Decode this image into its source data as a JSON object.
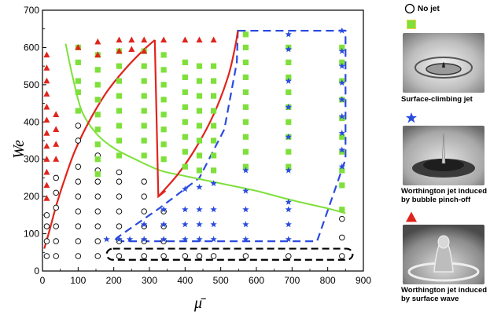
{
  "chart_data": {
    "type": "scatter",
    "xlabel": "μ̄",
    "ylabel": "We",
    "xlim": [
      0,
      900
    ],
    "ylim": [
      0,
      700
    ],
    "x_ticks": [
      0,
      100,
      200,
      300,
      400,
      500,
      600,
      700,
      800,
      900
    ],
    "y_ticks": [
      0,
      100,
      200,
      300,
      400,
      500,
      600,
      700
    ],
    "grid": false,
    "legend_position": "right",
    "colors": {
      "no_jet": "#000000",
      "surface_climbing": "#7ee03a",
      "bubble_pinch": "#2a4be0",
      "surface_wave": "#e0241c",
      "green_curve": "#7ee03a",
      "red_curve": "#e0241c",
      "blue_region": "#2a4be0",
      "black_region": "#000000"
    },
    "series": [
      {
        "name": "No jet",
        "marker": "open-circle",
        "points": [
          [
            12,
            40
          ],
          [
            12,
            80
          ],
          [
            12,
            120
          ],
          [
            12,
            150
          ],
          [
            38,
            40
          ],
          [
            38,
            80
          ],
          [
            38,
            120
          ],
          [
            38,
            170
          ],
          [
            38,
            210
          ],
          [
            38,
            250
          ],
          [
            100,
            40
          ],
          [
            100,
            80
          ],
          [
            100,
            120
          ],
          [
            100,
            160
          ],
          [
            100,
            200
          ],
          [
            100,
            240
          ],
          [
            100,
            280
          ],
          [
            100,
            350
          ],
          [
            100,
            390
          ],
          [
            155,
            40
          ],
          [
            155,
            80
          ],
          [
            155,
            120
          ],
          [
            155,
            160
          ],
          [
            155,
            200
          ],
          [
            155,
            240
          ],
          [
            155,
            270
          ],
          [
            155,
            310
          ],
          [
            215,
            40
          ],
          [
            215,
            80
          ],
          [
            215,
            120
          ],
          [
            215,
            160
          ],
          [
            215,
            200
          ],
          [
            215,
            240
          ],
          [
            215,
            265
          ],
          [
            285,
            40
          ],
          [
            285,
            80
          ],
          [
            285,
            120
          ],
          [
            285,
            160
          ],
          [
            285,
            200
          ],
          [
            285,
            240
          ],
          [
            340,
            40
          ],
          [
            340,
            80
          ],
          [
            340,
            120
          ],
          [
            340,
            160
          ],
          [
            400,
            40
          ],
          [
            440,
            40
          ],
          [
            480,
            40
          ],
          [
            570,
            40
          ],
          [
            690,
            40
          ],
          [
            840,
            40
          ],
          [
            840,
            90
          ],
          [
            840,
            140
          ]
        ]
      },
      {
        "name": "Surface-climbing jet",
        "marker": "square",
        "points": [
          [
            100,
            430
          ],
          [
            100,
            480
          ],
          [
            100,
            510
          ],
          [
            100,
            560
          ],
          [
            100,
            600
          ],
          [
            155,
            260
          ],
          [
            155,
            300
          ],
          [
            155,
            340
          ],
          [
            155,
            380
          ],
          [
            155,
            420
          ],
          [
            155,
            460
          ],
          [
            155,
            500
          ],
          [
            155,
            540
          ],
          [
            155,
            580
          ],
          [
            215,
            310
          ],
          [
            215,
            350
          ],
          [
            215,
            390
          ],
          [
            215,
            430
          ],
          [
            215,
            470
          ],
          [
            215,
            510
          ],
          [
            215,
            550
          ],
          [
            215,
            590
          ],
          [
            285,
            310
          ],
          [
            285,
            350
          ],
          [
            285,
            390
          ],
          [
            285,
            430
          ],
          [
            285,
            470
          ],
          [
            285,
            510
          ],
          [
            285,
            550
          ],
          [
            285,
            590
          ],
          [
            340,
            300
          ],
          [
            340,
            340
          ],
          [
            340,
            380
          ],
          [
            340,
            420
          ],
          [
            340,
            460
          ],
          [
            340,
            500
          ],
          [
            340,
            540
          ],
          [
            340,
            580
          ],
          [
            400,
            280
          ],
          [
            400,
            320
          ],
          [
            400,
            360
          ],
          [
            400,
            400
          ],
          [
            400,
            440
          ],
          [
            400,
            480
          ],
          [
            400,
            520
          ],
          [
            400,
            560
          ],
          [
            440,
            270
          ],
          [
            440,
            310
          ],
          [
            440,
            350
          ],
          [
            440,
            390
          ],
          [
            440,
            430
          ],
          [
            440,
            470
          ],
          [
            440,
            510
          ],
          [
            440,
            550
          ],
          [
            480,
            270
          ],
          [
            480,
            310
          ],
          [
            480,
            350
          ],
          [
            480,
            390
          ],
          [
            480,
            430
          ],
          [
            480,
            470
          ],
          [
            480,
            510
          ],
          [
            480,
            550
          ],
          [
            570,
            280
          ],
          [
            570,
            320
          ],
          [
            570,
            360
          ],
          [
            570,
            400
          ],
          [
            570,
            440
          ],
          [
            570,
            480
          ],
          [
            570,
            520
          ],
          [
            570,
            560
          ],
          [
            570,
            600
          ],
          [
            570,
            635
          ],
          [
            690,
            280
          ],
          [
            690,
            320
          ],
          [
            690,
            360
          ],
          [
            690,
            400
          ],
          [
            690,
            440
          ],
          [
            690,
            480
          ],
          [
            690,
            520
          ],
          [
            690,
            560
          ],
          [
            690,
            600
          ],
          [
            840,
            165
          ],
          [
            840,
            230
          ],
          [
            840,
            270
          ],
          [
            840,
            320
          ],
          [
            840,
            360
          ],
          [
            840,
            410
          ],
          [
            840,
            460
          ],
          [
            840,
            510
          ],
          [
            840,
            560
          ],
          [
            840,
            600
          ]
        ]
      },
      {
        "name": "Worthington jet induced by bubble pinch-off",
        "marker": "star",
        "points": [
          [
            180,
            85
          ],
          [
            215,
            85
          ],
          [
            245,
            85
          ],
          [
            285,
            85
          ],
          [
            340,
            85
          ],
          [
            400,
            85
          ],
          [
            440,
            85
          ],
          [
            480,
            85
          ],
          [
            570,
            85
          ],
          [
            690,
            85
          ],
          [
            285,
            125
          ],
          [
            340,
            125
          ],
          [
            400,
            125
          ],
          [
            440,
            125
          ],
          [
            480,
            125
          ],
          [
            570,
            125
          ],
          [
            690,
            125
          ],
          [
            340,
            165
          ],
          [
            400,
            165
          ],
          [
            440,
            165
          ],
          [
            480,
            165
          ],
          [
            570,
            165
          ],
          [
            690,
            165
          ],
          [
            400,
            220
          ],
          [
            440,
            225
          ],
          [
            480,
            235
          ],
          [
            570,
            215
          ],
          [
            690,
            185
          ],
          [
            570,
            270
          ],
          [
            690,
            270
          ],
          [
            690,
            360
          ],
          [
            690,
            440
          ],
          [
            690,
            510
          ],
          [
            690,
            595
          ],
          [
            690,
            635
          ],
          [
            840,
            280
          ],
          [
            840,
            325
          ],
          [
            840,
            370
          ],
          [
            840,
            415
          ],
          [
            840,
            460
          ],
          [
            840,
            505
          ],
          [
            840,
            550
          ],
          [
            840,
            590
          ],
          [
            840,
            645
          ]
        ]
      },
      {
        "name": "Worthington jet induced by surface wave",
        "marker": "triangle",
        "points": [
          [
            12,
            195
          ],
          [
            12,
            230
          ],
          [
            12,
            265
          ],
          [
            12,
            300
          ],
          [
            12,
            335
          ],
          [
            12,
            370
          ],
          [
            12,
            405
          ],
          [
            12,
            440
          ],
          [
            12,
            475
          ],
          [
            12,
            510
          ],
          [
            12,
            545
          ],
          [
            12,
            580
          ],
          [
            38,
            300
          ],
          [
            38,
            340
          ],
          [
            38,
            380
          ],
          [
            38,
            420
          ],
          [
            100,
            600
          ],
          [
            155,
            615
          ],
          [
            215,
            620
          ],
          [
            250,
            620
          ],
          [
            285,
            620
          ],
          [
            155,
            580
          ],
          [
            215,
            590
          ],
          [
            250,
            595
          ],
          [
            285,
            590
          ],
          [
            340,
            620
          ],
          [
            400,
            620
          ],
          [
            440,
            620
          ],
          [
            480,
            620
          ]
        ]
      }
    ],
    "boundaries": [
      {
        "name": "green-curve",
        "points": [
          [
            65,
            610
          ],
          [
            85,
            520
          ],
          [
            110,
            430
          ],
          [
            150,
            370
          ],
          [
            200,
            330
          ],
          [
            260,
            300
          ],
          [
            330,
            270
          ],
          [
            400,
            255
          ],
          [
            500,
            235
          ],
          [
            600,
            215
          ],
          [
            700,
            190
          ],
          [
            800,
            168
          ],
          [
            850,
            155
          ]
        ]
      },
      {
        "name": "red-curve-left",
        "points": [
          [
            5,
            60
          ],
          [
            20,
            110
          ],
          [
            40,
            180
          ],
          [
            60,
            240
          ],
          [
            90,
            320
          ],
          [
            130,
            400
          ],
          [
            180,
            480
          ],
          [
            230,
            540
          ],
          [
            280,
            590
          ],
          [
            315,
            620
          ]
        ]
      },
      {
        "name": "red-vertical",
        "points": [
          [
            315,
            620
          ],
          [
            325,
            200
          ],
          [
            345,
            215
          ]
        ]
      },
      {
        "name": "red-curve-right",
        "points": [
          [
            325,
            200
          ],
          [
            380,
            260
          ],
          [
            430,
            330
          ],
          [
            480,
            420
          ],
          [
            520,
            520
          ],
          [
            540,
            600
          ],
          [
            548,
            645
          ]
        ]
      },
      {
        "name": "blue-dashed-region",
        "points": [
          [
            548,
            645
          ],
          [
            850,
            645
          ],
          [
            850,
            300
          ],
          [
            770,
            80
          ],
          [
            200,
            80
          ],
          [
            210,
            90
          ],
          [
            330,
            170
          ],
          [
            440,
            250
          ],
          [
            510,
            380
          ],
          [
            545,
            560
          ]
        ]
      },
      {
        "name": "black-dashed-region",
        "points": [
          [
            180,
            60
          ],
          [
            870,
            60
          ],
          [
            870,
            30
          ],
          [
            180,
            30
          ]
        ]
      }
    ]
  },
  "legend": {
    "no_jet_label": "No jet",
    "surface_climbing_label": "Surface-climbing jet",
    "bubble_pinch_label": "Worthington jet induced by bubble pinch-off",
    "surface_wave_label": "Worthington jet induced by surface wave"
  }
}
